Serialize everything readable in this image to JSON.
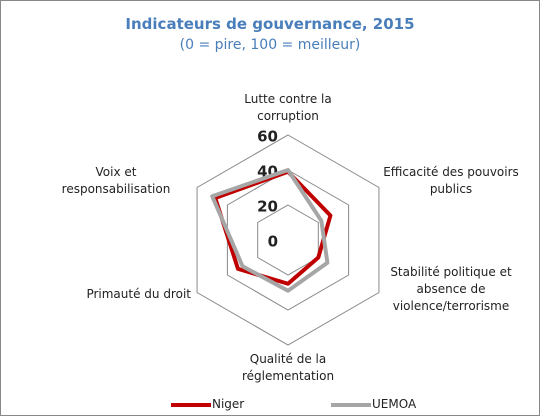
{
  "chart_data": {
    "type": "radar",
    "title": "Indicateurs de gouvernance, 2015",
    "subtitle": "(0 = pire, 100 = meilleur)",
    "categories": [
      "Lutte contre la corruption",
      "Efficacité des pouvoirs publics",
      "Stabilité politique et absence de violence/terrorisme",
      "Qualité de la réglementation",
      "Primauté du droit",
      "Voix et responsabilisation"
    ],
    "series": [
      {
        "name": "Niger",
        "color": "#c00000",
        "values": [
          39,
          28,
          20,
          25,
          33,
          48
        ]
      },
      {
        "name": "UEMOA",
        "color": "#a6a6a6",
        "values": [
          40,
          22,
          26,
          29,
          30,
          50
        ]
      }
    ],
    "ylim": [
      0,
      60
    ],
    "yticks": [
      0,
      20,
      40,
      60
    ],
    "grid": true
  }
}
